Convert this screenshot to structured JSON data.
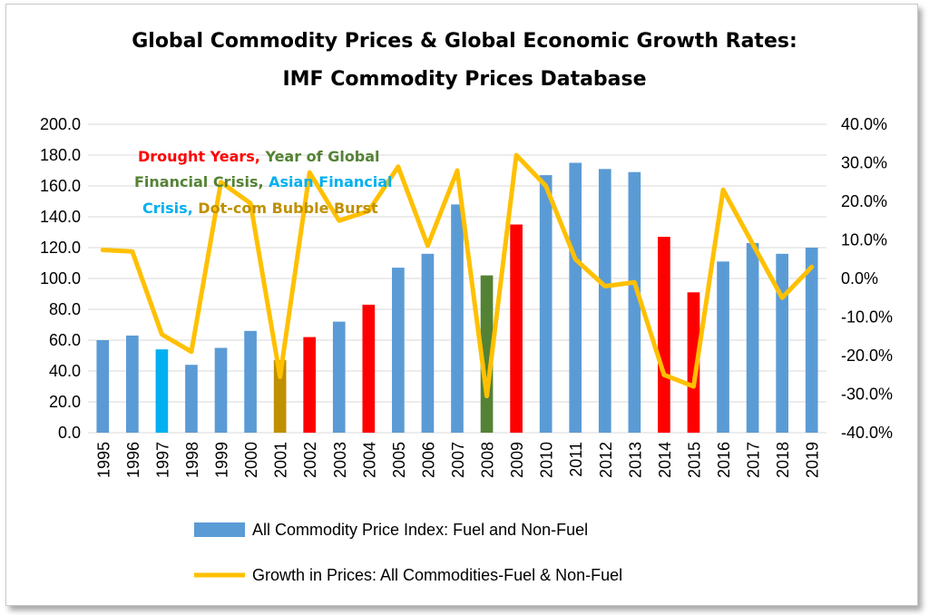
{
  "chart_data": {
    "type": "bar",
    "title": "Global Commodity Prices & Global Economic Growth Rates:",
    "subtitle": "IMF Commodity Prices Database",
    "categories": [
      "1995",
      "1996",
      "1997",
      "1998",
      "1999",
      "2000",
      "2001",
      "2002",
      "2003",
      "2004",
      "2005",
      "2006",
      "2007",
      "2008",
      "2009",
      "2010",
      "2011",
      "2012",
      "2013",
      "2014",
      "2015",
      "2016",
      "2017",
      "2018",
      "2019"
    ],
    "series": [
      {
        "name": "All Commodity Price Index: Fuel and Non-Fuel",
        "type": "bar",
        "axis": "left",
        "values": [
          60,
          63,
          54,
          44,
          55,
          66,
          47,
          62,
          72,
          83,
          107,
          116,
          148,
          102,
          135,
          167,
          175,
          171,
          169,
          127,
          91,
          111,
          123,
          116,
          120
        ],
        "colors": [
          "#5b9bd5",
          "#5b9bd5",
          "#00b0f0",
          "#5b9bd5",
          "#5b9bd5",
          "#5b9bd5",
          "#bf9000",
          "#ff0000",
          "#5b9bd5",
          "#ff0000",
          "#5b9bd5",
          "#5b9bd5",
          "#5b9bd5",
          "#548235",
          "#ff0000",
          "#5b9bd5",
          "#5b9bd5",
          "#5b9bd5",
          "#5b9bd5",
          "#ff0000",
          "#ff0000",
          "#5b9bd5",
          "#5b9bd5",
          "#5b9bd5",
          "#5b9bd5"
        ]
      },
      {
        "name": "Growth in  Prices: All Commodities-Fuel & Non-Fuel",
        "type": "line",
        "axis": "right",
        "color": "#ffc000",
        "values": [
          7.4,
          7.0,
          -14.5,
          -19.0,
          25.0,
          19.5,
          -25.5,
          27.5,
          15.0,
          17.5,
          29.0,
          8.5,
          28.0,
          -30.5,
          32.0,
          24.0,
          5.0,
          -2.0,
          -1.0,
          -25.0,
          -28.0,
          23.0,
          9.0,
          -5.0,
          3.0
        ]
      }
    ],
    "y_left": {
      "min": 0,
      "max": 200,
      "ticks": [
        "0.0",
        "20.0",
        "40.0",
        "60.0",
        "80.0",
        "100.0",
        "120.0",
        "140.0",
        "160.0",
        "180.0",
        "200.0"
      ]
    },
    "y_right": {
      "min": -40,
      "max": 40,
      "ticks": [
        "-40.0%",
        "-30.0%",
        "-20.0%",
        "-10.0%",
        "0.0%",
        "10.0%",
        "20.0%",
        "30.0%",
        "40.0%"
      ]
    },
    "grid": true,
    "legend": "bottom",
    "annotation": {
      "line1": [
        {
          "text": "Drought Years,",
          "color": "#ff0000"
        },
        {
          "text": " Year of Global",
          "color": "#548235"
        }
      ],
      "line2": [
        {
          "text": "Financial Crisis,",
          "color": "#548235"
        },
        {
          "text": " Asian Financial",
          "color": "#00b0f0"
        }
      ],
      "line3": [
        {
          "text": "Crisis,",
          "color": "#00b0f0"
        },
        {
          "text": "  Dot-com Bubble Burst",
          "color": "#bf9000"
        }
      ]
    }
  }
}
